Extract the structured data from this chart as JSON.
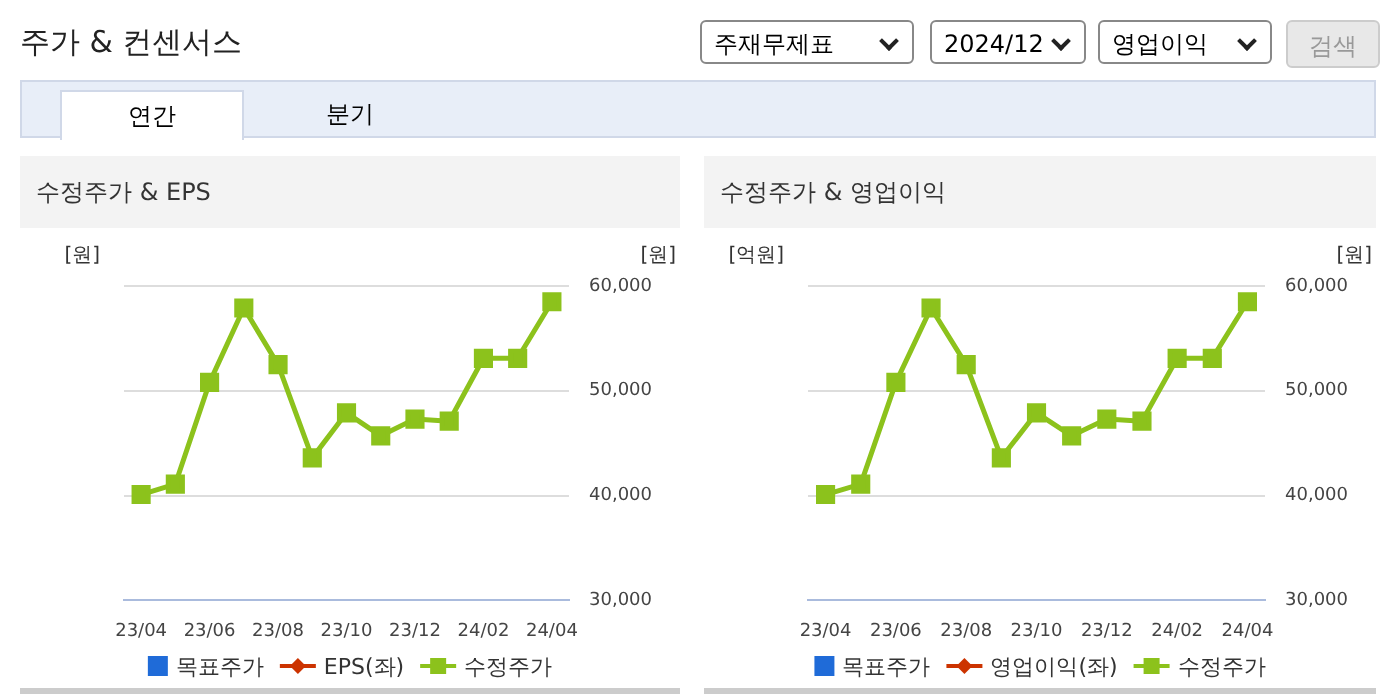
{
  "chart_data": [
    {
      "type": "line",
      "title": "수정주가 & EPS",
      "ylabel": "[원]",
      "y2label": "[원]",
      "annotations": [
        "주가 & 컨센서스",
        "주재무제표",
        "2024/12",
        "영업이익",
        "검색",
        "연간",
        "분기"
      ],
      "categories": [
        "23/04",
        null,
        "23/06",
        null,
        "23/08",
        null,
        "23/10",
        null,
        "23/12",
        null,
        "24/02",
        null,
        "24/04"
      ],
      "series": [
        {
          "name": "목표주가",
          "type": "scatter",
          "color": "#1f6bd8",
          "marker": "square",
          "values": [
            null,
            null,
            null,
            null,
            null,
            null,
            null,
            null,
            null,
            null,
            null,
            null,
            null
          ]
        },
        {
          "name": "EPS(좌)",
          "color": "#cc3300",
          "marker": "diamond",
          "values": [
            null,
            null,
            null,
            null,
            null,
            null,
            null,
            null,
            null,
            null,
            null,
            null,
            null
          ]
        },
        {
          "name": "수정주가",
          "color": "#8cc21c",
          "marker": "square",
          "axis": "y2",
          "values": [
            40100,
            41100,
            50800,
            57900,
            52500,
            43600,
            47900,
            45700,
            47300,
            47100,
            53100,
            53100,
            58500
          ]
        }
      ],
      "y2lim": [
        30000,
        60000
      ],
      "y2ticks": [
        {
          "value": 30000,
          "label": "30,000"
        },
        {
          "value": 40000,
          "label": "40,000"
        },
        {
          "value": 50000,
          "label": "50,000"
        },
        {
          "value": 60000,
          "label": "60,000"
        }
      ],
      "grid": "y",
      "legend": "bottom"
    },
    {
      "type": "line",
      "title": "수정주가 & 영업이익",
      "ylabel": "[억원]",
      "y2label": "[원]",
      "categories": [
        "23/04",
        null,
        "23/06",
        null,
        "23/08",
        null,
        "23/10",
        null,
        "23/12",
        null,
        "24/02",
        null,
        "24/04"
      ],
      "series": [
        {
          "name": "목표주가",
          "type": "scatter",
          "color": "#1f6bd8",
          "marker": "square",
          "values": [
            null,
            null,
            null,
            null,
            null,
            null,
            null,
            null,
            null,
            null,
            null,
            null,
            null
          ]
        },
        {
          "name": "영업이익(좌)",
          "color": "#cc3300",
          "marker": "diamond",
          "values": [
            null,
            null,
            null,
            null,
            null,
            null,
            null,
            null,
            null,
            null,
            null,
            null,
            null
          ]
        },
        {
          "name": "수정주가",
          "color": "#8cc21c",
          "marker": "square",
          "axis": "y2",
          "values": [
            40100,
            41100,
            50800,
            57900,
            52500,
            43600,
            47900,
            45700,
            47300,
            47100,
            53100,
            53100,
            58500
          ]
        }
      ],
      "y2lim": [
        30000,
        60000
      ],
      "y2ticks": [
        {
          "value": 30000,
          "label": "30,000"
        },
        {
          "value": 40000,
          "label": "40,000"
        },
        {
          "value": 50000,
          "label": "50,000"
        },
        {
          "value": 60000,
          "label": "60,000"
        }
      ],
      "grid": "y",
      "legend": "bottom"
    }
  ]
}
